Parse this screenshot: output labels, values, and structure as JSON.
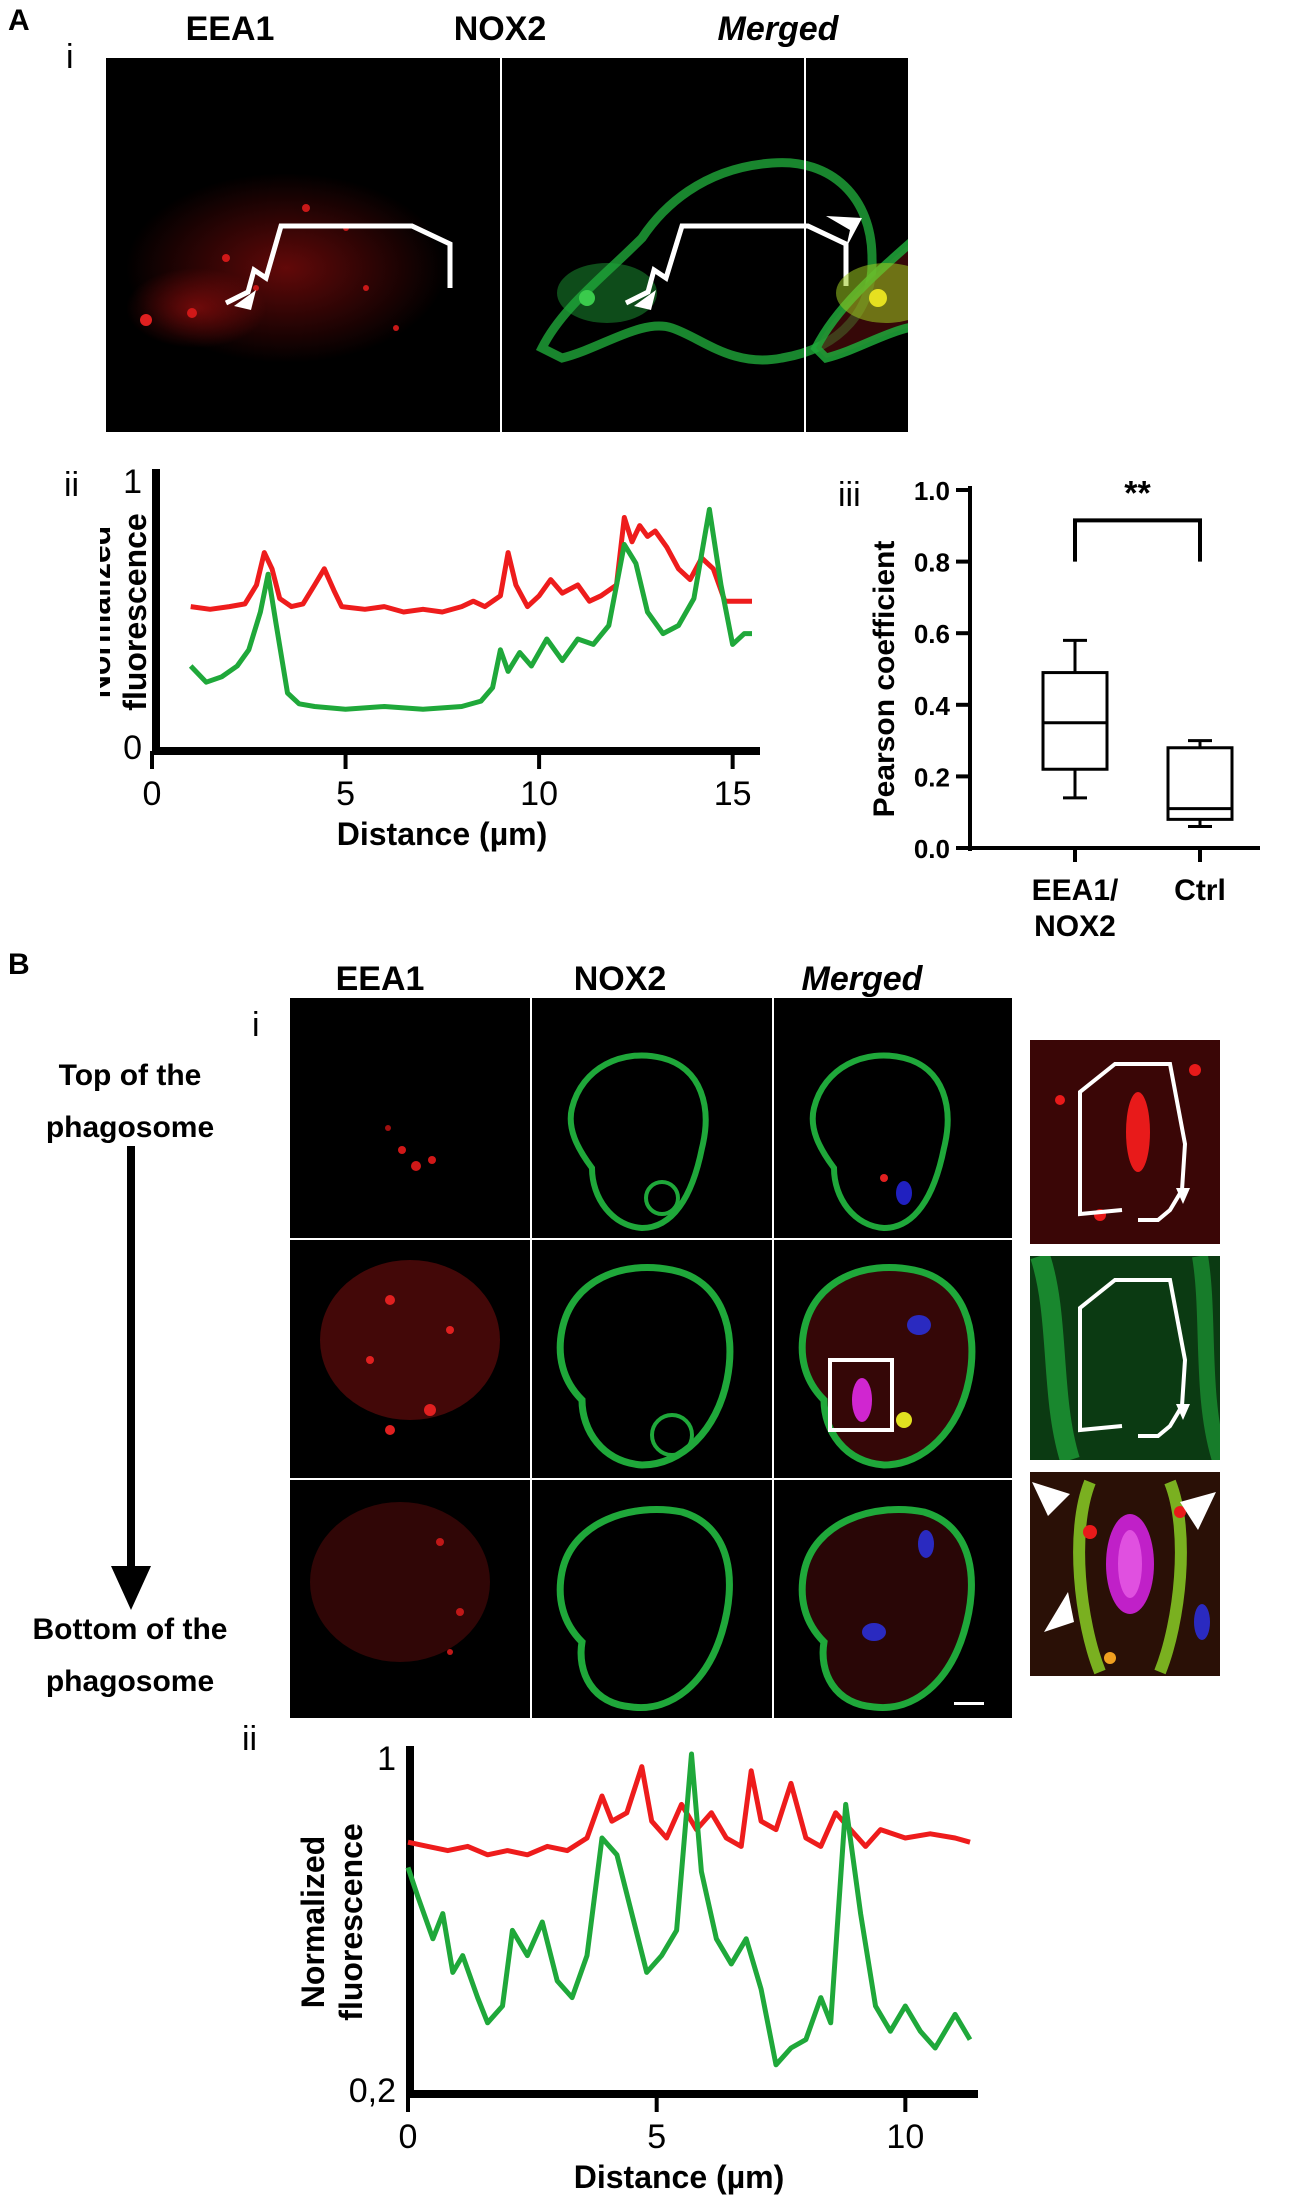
{
  "panelA": {
    "letter": "A",
    "sub_i": "i",
    "sub_ii": "ii",
    "sub_iii": "iii",
    "col_labels": [
      "EEA1",
      "NOX2",
      "Merged"
    ]
  },
  "panelB": {
    "letter": "B",
    "sub_i": "i",
    "sub_ii": "ii",
    "col_labels": [
      "EEA1",
      "NOX2",
      "Merged"
    ],
    "top_label_line1": "Top of the",
    "top_label_line2": "phagosome",
    "bottom_label_line1": "Bottom of the",
    "bottom_label_line2": "phagosome"
  },
  "colors": {
    "eea1": "#ee1c1c",
    "nox2": "#1fa83a",
    "box": "#000000"
  },
  "chart_data": [
    {
      "id": "A-ii",
      "type": "line",
      "title": "",
      "xlabel": "Distance (µm)",
      "ylabel_line1": "Normalized",
      "ylabel_line2": "fluorescence",
      "xlim": [
        0,
        15.5
      ],
      "ylim": [
        0,
        1
      ],
      "xticks": [
        0,
        5,
        10,
        15
      ],
      "ytick_labels": [
        "0",
        "1"
      ],
      "series": [
        {
          "channel": "EEA1",
          "color": "#ee1c1c",
          "points": [
            [
              1.0,
              0.52
            ],
            [
              1.5,
              0.51
            ],
            [
              2.0,
              0.52
            ],
            [
              2.4,
              0.53
            ],
            [
              2.7,
              0.6
            ],
            [
              2.9,
              0.72
            ],
            [
              3.1,
              0.66
            ],
            [
              3.3,
              0.55
            ],
            [
              3.6,
              0.52
            ],
            [
              3.9,
              0.53
            ],
            [
              4.2,
              0.6
            ],
            [
              4.45,
              0.66
            ],
            [
              4.7,
              0.58
            ],
            [
              4.9,
              0.52
            ],
            [
              5.5,
              0.51
            ],
            [
              6.0,
              0.52
            ],
            [
              6.5,
              0.5
            ],
            [
              7.0,
              0.51
            ],
            [
              7.5,
              0.5
            ],
            [
              8.0,
              0.52
            ],
            [
              8.3,
              0.54
            ],
            [
              8.6,
              0.52
            ],
            [
              9.0,
              0.56
            ],
            [
              9.2,
              0.72
            ],
            [
              9.4,
              0.6
            ],
            [
              9.7,
              0.52
            ],
            [
              10.0,
              0.56
            ],
            [
              10.3,
              0.62
            ],
            [
              10.6,
              0.57
            ],
            [
              11.0,
              0.6
            ],
            [
              11.3,
              0.54
            ],
            [
              11.6,
              0.56
            ],
            [
              12.0,
              0.6
            ],
            [
              12.2,
              0.85
            ],
            [
              12.4,
              0.76
            ],
            [
              12.6,
              0.82
            ],
            [
              12.8,
              0.78
            ],
            [
              13.0,
              0.8
            ],
            [
              13.3,
              0.74
            ],
            [
              13.6,
              0.66
            ],
            [
              13.9,
              0.62
            ],
            [
              14.2,
              0.7
            ],
            [
              14.5,
              0.66
            ],
            [
              14.8,
              0.54
            ],
            [
              15.2,
              0.54
            ],
            [
              15.5,
              0.54
            ]
          ]
        },
        {
          "channel": "NOX2",
          "color": "#1fa83a",
          "points": [
            [
              1.0,
              0.3
            ],
            [
              1.4,
              0.24
            ],
            [
              1.8,
              0.26
            ],
            [
              2.2,
              0.3
            ],
            [
              2.5,
              0.36
            ],
            [
              2.8,
              0.5
            ],
            [
              3.0,
              0.64
            ],
            [
              3.2,
              0.46
            ],
            [
              3.5,
              0.2
            ],
            [
              3.8,
              0.16
            ],
            [
              4.2,
              0.15
            ],
            [
              5.0,
              0.14
            ],
            [
              6.0,
              0.15
            ],
            [
              7.0,
              0.14
            ],
            [
              8.0,
              0.15
            ],
            [
              8.5,
              0.17
            ],
            [
              8.8,
              0.22
            ],
            [
              9.0,
              0.36
            ],
            [
              9.2,
              0.28
            ],
            [
              9.5,
              0.35
            ],
            [
              9.8,
              0.3
            ],
            [
              10.2,
              0.4
            ],
            [
              10.6,
              0.32
            ],
            [
              11.0,
              0.4
            ],
            [
              11.4,
              0.38
            ],
            [
              11.8,
              0.45
            ],
            [
              12.2,
              0.75
            ],
            [
              12.5,
              0.68
            ],
            [
              12.8,
              0.5
            ],
            [
              13.2,
              0.42
            ],
            [
              13.6,
              0.45
            ],
            [
              14.0,
              0.55
            ],
            [
              14.4,
              0.88
            ],
            [
              14.7,
              0.6
            ],
            [
              15.0,
              0.38
            ],
            [
              15.3,
              0.42
            ],
            [
              15.5,
              0.42
            ]
          ]
        }
      ]
    },
    {
      "id": "A-iii",
      "type": "box",
      "ylabel": "Pearson coefficient",
      "ylim": [
        0.0,
        1.0
      ],
      "yticks": [
        "0.0",
        "0.2",
        "0.4",
        "0.6",
        "0.8",
        "1.0"
      ],
      "categories": [
        "EEA1/\nNOX2",
        "Ctrl"
      ],
      "category_line1": [
        "EEA1/",
        "Ctrl"
      ],
      "category_line2": [
        "NOX2",
        ""
      ],
      "boxes": [
        {
          "min": 0.14,
          "q1": 0.22,
          "median": 0.35,
          "q3": 0.49,
          "max": 0.58
        },
        {
          "min": 0.06,
          "q1": 0.08,
          "median": 0.11,
          "q3": 0.28,
          "max": 0.3
        }
      ],
      "significance": "**"
    },
    {
      "id": "B-ii",
      "type": "line",
      "title": "",
      "xlabel": "Distance (µm)",
      "ylabel_line1": "Normalized",
      "ylabel_line2": "fluorescence",
      "xlim": [
        0,
        11.3
      ],
      "ylim": [
        0.2,
        1
      ],
      "xticks": [
        0,
        5,
        10
      ],
      "ytick_labels": [
        "0,2",
        "1"
      ],
      "series": [
        {
          "channel": "EEA1",
          "color": "#ee1c1c",
          "points": [
            [
              0.0,
              0.79
            ],
            [
              0.4,
              0.78
            ],
            [
              0.8,
              0.77
            ],
            [
              1.2,
              0.78
            ],
            [
              1.6,
              0.76
            ],
            [
              2.0,
              0.77
            ],
            [
              2.4,
              0.76
            ],
            [
              2.8,
              0.78
            ],
            [
              3.2,
              0.77
            ],
            [
              3.6,
              0.8
            ],
            [
              3.9,
              0.9
            ],
            [
              4.1,
              0.84
            ],
            [
              4.4,
              0.86
            ],
            [
              4.7,
              0.97
            ],
            [
              4.9,
              0.84
            ],
            [
              5.2,
              0.8
            ],
            [
              5.5,
              0.88
            ],
            [
              5.8,
              0.82
            ],
            [
              6.1,
              0.86
            ],
            [
              6.4,
              0.8
            ],
            [
              6.7,
              0.78
            ],
            [
              6.9,
              0.96
            ],
            [
              7.1,
              0.84
            ],
            [
              7.4,
              0.82
            ],
            [
              7.7,
              0.93
            ],
            [
              8.0,
              0.8
            ],
            [
              8.3,
              0.78
            ],
            [
              8.6,
              0.86
            ],
            [
              8.9,
              0.82
            ],
            [
              9.2,
              0.78
            ],
            [
              9.5,
              0.82
            ],
            [
              10.0,
              0.8
            ],
            [
              10.5,
              0.81
            ],
            [
              11.0,
              0.8
            ],
            [
              11.3,
              0.79
            ]
          ]
        },
        {
          "channel": "NOX2",
          "color": "#1fa83a",
          "points": [
            [
              0.0,
              0.73
            ],
            [
              0.2,
              0.66
            ],
            [
              0.5,
              0.56
            ],
            [
              0.7,
              0.62
            ],
            [
              0.9,
              0.48
            ],
            [
              1.1,
              0.52
            ],
            [
              1.4,
              0.42
            ],
            [
              1.6,
              0.36
            ],
            [
              1.9,
              0.4
            ],
            [
              2.1,
              0.58
            ],
            [
              2.4,
              0.52
            ],
            [
              2.7,
              0.6
            ],
            [
              3.0,
              0.46
            ],
            [
              3.3,
              0.42
            ],
            [
              3.6,
              0.52
            ],
            [
              3.9,
              0.8
            ],
            [
              4.2,
              0.76
            ],
            [
              4.5,
              0.62
            ],
            [
              4.8,
              0.48
            ],
            [
              5.1,
              0.52
            ],
            [
              5.4,
              0.58
            ],
            [
              5.7,
              1.0
            ],
            [
              5.9,
              0.72
            ],
            [
              6.2,
              0.56
            ],
            [
              6.5,
              0.5
            ],
            [
              6.8,
              0.56
            ],
            [
              7.1,
              0.44
            ],
            [
              7.4,
              0.26
            ],
            [
              7.7,
              0.3
            ],
            [
              8.0,
              0.32
            ],
            [
              8.3,
              0.42
            ],
            [
              8.5,
              0.36
            ],
            [
              8.8,
              0.88
            ],
            [
              9.1,
              0.62
            ],
            [
              9.4,
              0.4
            ],
            [
              9.7,
              0.34
            ],
            [
              10.0,
              0.4
            ],
            [
              10.3,
              0.34
            ],
            [
              10.6,
              0.3
            ],
            [
              11.0,
              0.38
            ],
            [
              11.3,
              0.32
            ]
          ]
        }
      ]
    }
  ]
}
